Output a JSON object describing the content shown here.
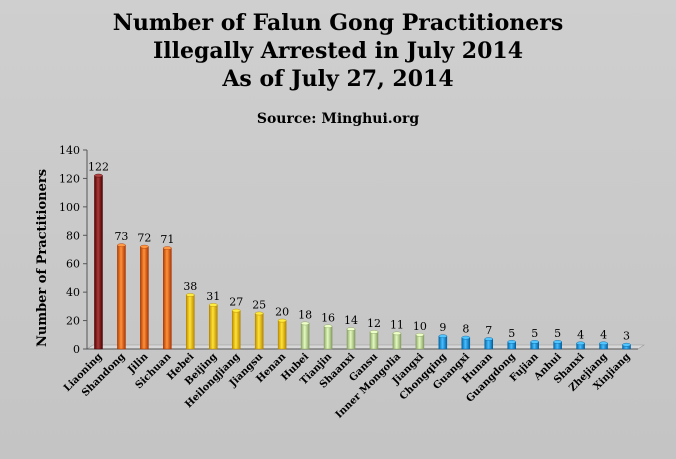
{
  "chart_data": {
    "type": "bar",
    "title_lines": [
      "Number of Falun Gong Practitioners",
      "Illegally Arrested in July 2014",
      "As of July 27, 2014"
    ],
    "subtitle": "Source: Minghui.org",
    "xlabel": "",
    "ylabel": "Number of Practitioners",
    "ylim": [
      0,
      140
    ],
    "yticks": [
      0,
      20,
      40,
      60,
      80,
      100,
      120,
      140
    ],
    "grid": false,
    "legend": "none",
    "categories": [
      "Liaoning",
      "Shandong",
      "Jilin",
      "Sichuan",
      "Hebei",
      "Beijing",
      "Heilongjiang",
      "Jiangsu",
      "Henan",
      "Hubei",
      "Tianjin",
      "Shaanxi",
      "Gansu",
      "Inner Mongolia",
      "Jiangxi",
      "Chongqing",
      "Guangxi",
      "Hunan",
      "Guangdong",
      "Fujian",
      "Anhui",
      "Shanxi",
      "Zhejiang",
      "Xinjiang"
    ],
    "values": [
      122,
      73,
      72,
      71,
      38,
      31,
      27,
      25,
      20,
      18,
      16,
      14,
      12,
      11,
      10,
      9,
      8,
      7,
      5,
      5,
      5,
      4,
      4,
      3
    ],
    "colors": [
      "#8b1c1c",
      "#e8731e",
      "#e8731e",
      "#e8731e",
      "#f5c518",
      "#f5c518",
      "#f5c518",
      "#f5c518",
      "#f5c518",
      "#c5dca0",
      "#c5dca0",
      "#c5dca0",
      "#c5dca0",
      "#c5dca0",
      "#c5dca0",
      "#2a9fe0",
      "#2a9fe0",
      "#2a9fe0",
      "#2a9fe0",
      "#2a9fe0",
      "#2a9fe0",
      "#2a9fe0",
      "#2a9fe0",
      "#2a9fe0"
    ]
  }
}
